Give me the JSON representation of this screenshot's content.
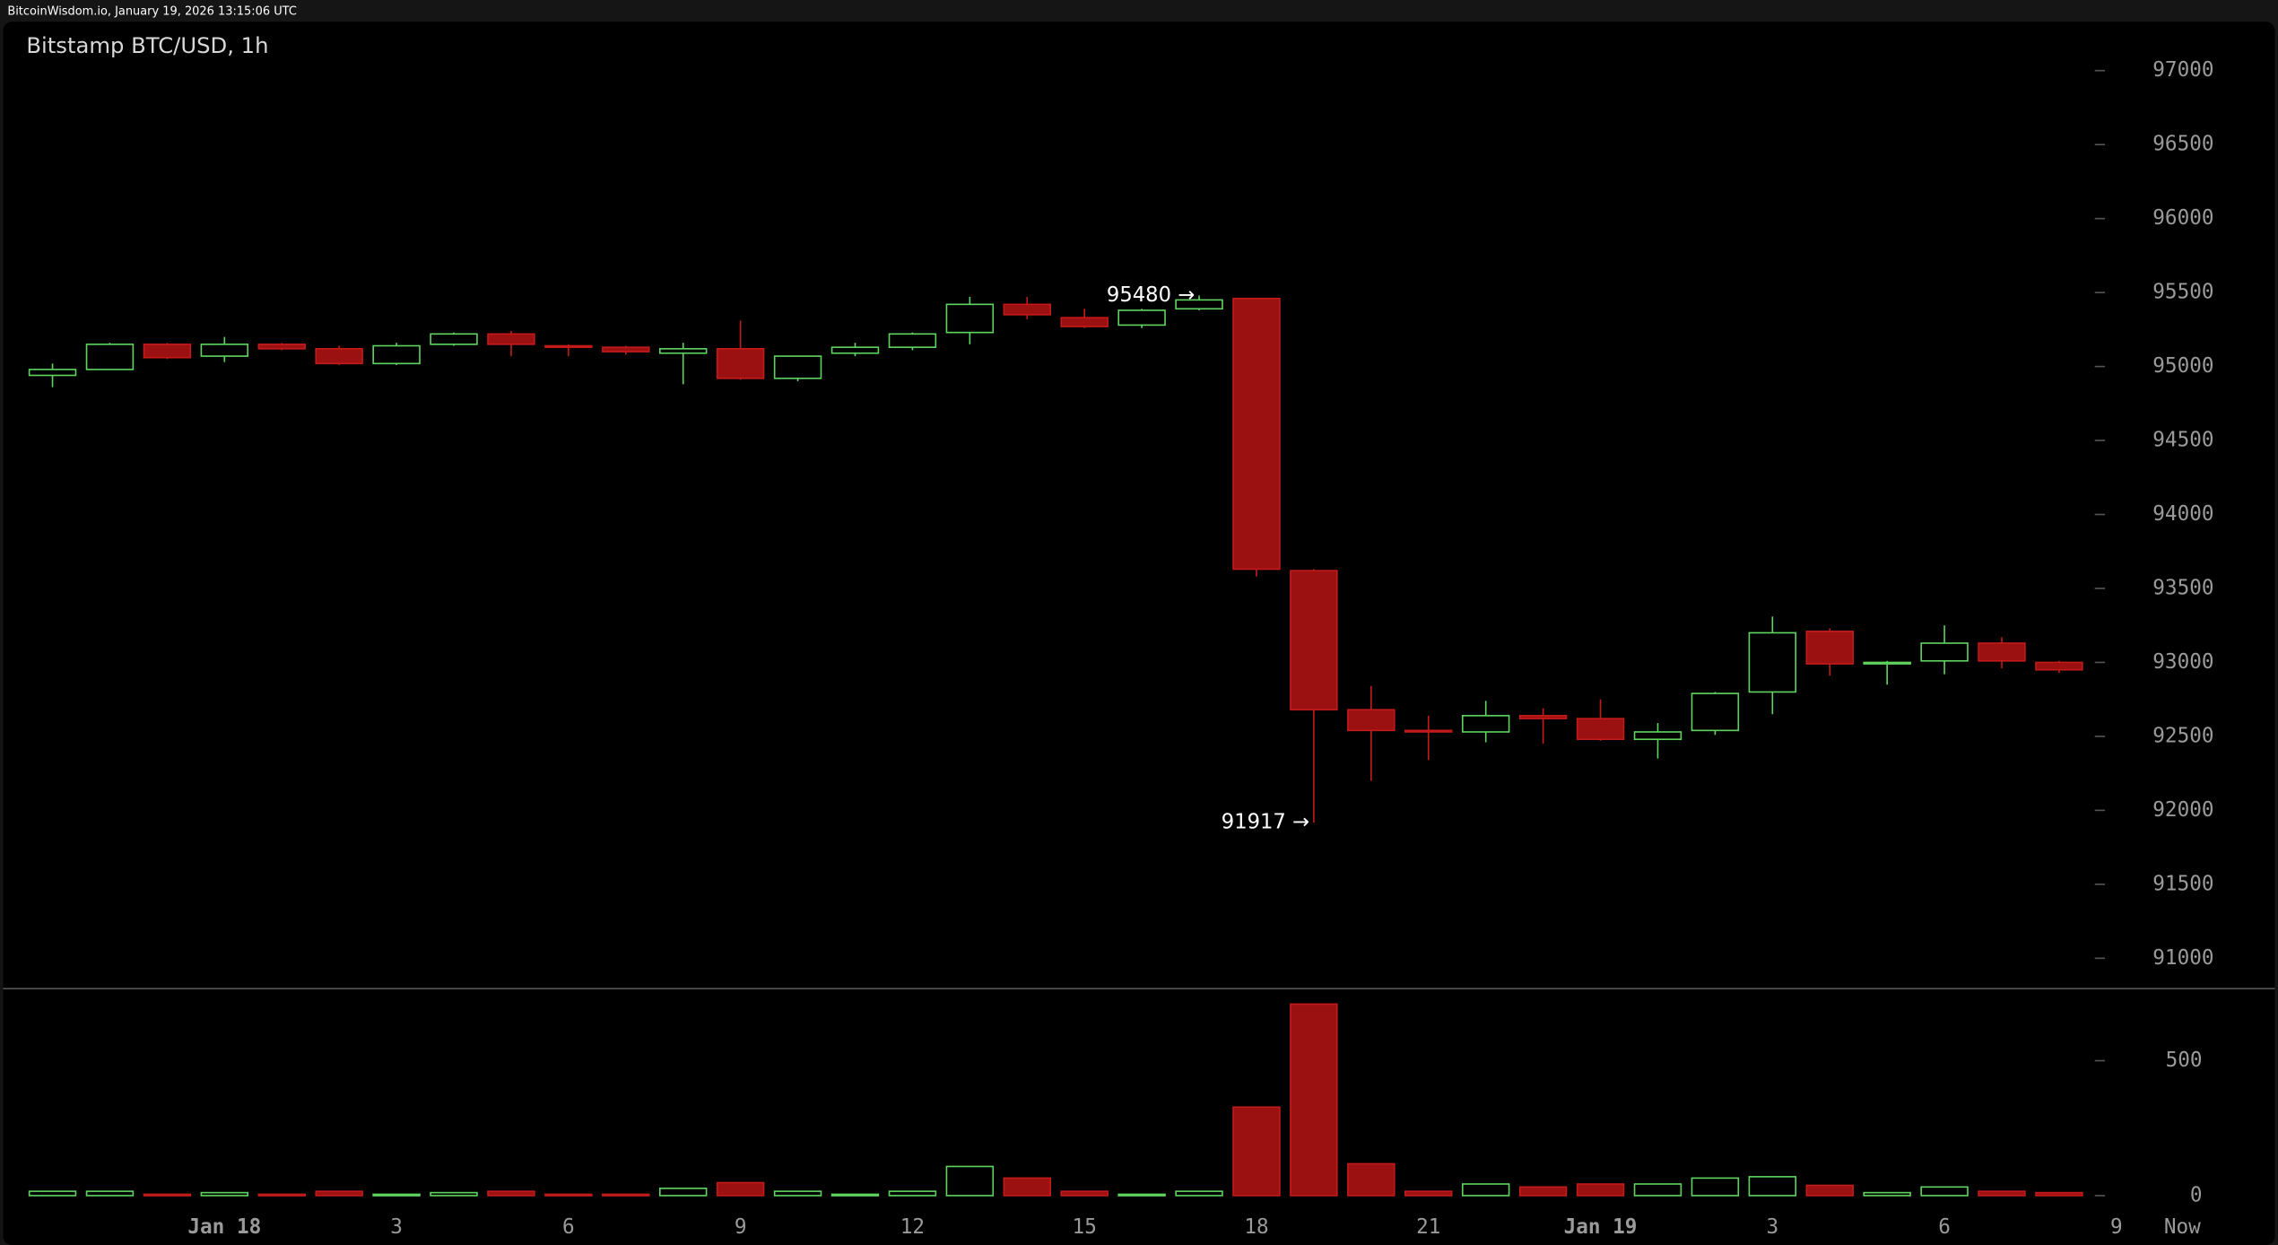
{
  "chart_data": {
    "type": "candlestick",
    "header": "BitcoinWisdom.io, January 19, 2026 13:15:06 UTC",
    "title": "Bitstamp BTC/USD, 1h",
    "categories": [
      null,
      null,
      null,
      "Jan 18",
      null,
      null,
      "3",
      null,
      null,
      "6",
      null,
      null,
      "9",
      null,
      null,
      "12",
      null,
      null,
      "15",
      null,
      null,
      "18",
      null,
      null,
      "21",
      null,
      null,
      "Jan 19",
      null,
      null,
      "3",
      null,
      null,
      "6",
      null,
      null
    ],
    "future_labels": [
      "9",
      "Now"
    ],
    "open": [
      94940,
      94980,
      95150,
      95070,
      95150,
      95120,
      95020,
      95150,
      95220,
      95140,
      95130,
      95090,
      95120,
      94920,
      95090,
      95130,
      95230,
      95420,
      95330,
      95280,
      95390,
      95460,
      93620,
      92680,
      92540,
      92530,
      92640,
      92620,
      92480,
      92540,
      92800,
      93210,
      92990,
      93010,
      93130,
      93000
    ],
    "high": [
      95020,
      95160,
      95160,
      95200,
      95160,
      95140,
      95160,
      95230,
      95240,
      95150,
      95140,
      95160,
      95310,
      95070,
      95160,
      95230,
      95470,
      95470,
      95390,
      95390,
      95480,
      95460,
      93630,
      92840,
      92640,
      92740,
      92690,
      92750,
      92590,
      92800,
      93310,
      93230,
      93010,
      93250,
      93170,
      93010
    ],
    "low": [
      94860,
      94980,
      95050,
      95030,
      95110,
      95010,
      95010,
      95140,
      95070,
      95070,
      95080,
      94880,
      94910,
      94900,
      95070,
      95110,
      95150,
      95320,
      95260,
      95260,
      95380,
      93580,
      91917,
      92200,
      92340,
      92460,
      92450,
      92470,
      92350,
      92510,
      92650,
      92910,
      92850,
      92920,
      92960,
      92930
    ],
    "close": [
      94980,
      95150,
      95060,
      95150,
      95120,
      95020,
      95140,
      95220,
      95150,
      95130,
      95100,
      95120,
      94920,
      95070,
      95130,
      95220,
      95420,
      95350,
      95270,
      95380,
      95450,
      93630,
      92680,
      92540,
      92530,
      92640,
      92620,
      92480,
      92530,
      92790,
      93200,
      92990,
      93000,
      93130,
      93010,
      92950
    ],
    "colors": {
      "up": "#5fd35f",
      "down": "#c41a1a",
      "down_fill": "#9b1010"
    },
    "ylim": [
      90800,
      97330
    ],
    "yticks": [
      91000,
      91500,
      92000,
      92500,
      93000,
      93500,
      94000,
      94500,
      95000,
      95500,
      96000,
      96500,
      97000
    ],
    "volume": {
      "values": [
        16,
        16,
        5,
        11,
        5,
        16,
        5,
        11,
        16,
        5,
        5,
        27,
        48,
        16,
        5,
        16,
        108,
        65,
        16,
        5,
        16,
        328,
        710,
        118,
        16,
        43,
        32,
        43,
        43,
        65,
        70,
        38,
        11,
        32,
        16,
        11
      ],
      "ylim": [
        0,
        770
      ],
      "yticks": [
        0,
        500
      ]
    },
    "annotations": [
      {
        "value": 95480,
        "label": "95480 →"
      },
      {
        "value": 91917,
        "label": "91917 →"
      }
    ]
  }
}
